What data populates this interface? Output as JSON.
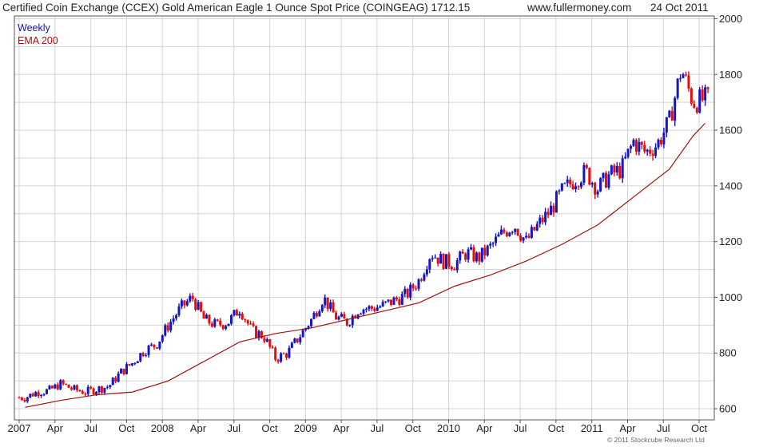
{
  "header": {
    "title": "Certified Coin Exchange (CCEX) Gold American Eagle 1 Ounce Spot Price (COINGEAG) 1712.15",
    "source": "www.fullermoney.com",
    "date": "24 Oct 2011"
  },
  "legend": {
    "weekly_label": "Weekly",
    "ema_label": "EMA 200"
  },
  "copyright": "© 2011 Stockcube Research Ltd",
  "colors": {
    "up": "#1414c8",
    "down": "#e01010",
    "ema": "#a01010",
    "grid": "#d4d4d4",
    "axis": "#555555"
  },
  "chart_data": {
    "type": "candlestick",
    "title": "Certified Coin Exchange (CCEX) Gold American Eagle 1 Ounce Spot Price (COINGEAG) 1712.15",
    "interval": "weekly",
    "y_axis": {
      "min": 560,
      "max": 2010,
      "ticks": [
        600,
        800,
        1000,
        1200,
        1400,
        1600,
        1800,
        2000
      ],
      "position": "right"
    },
    "x_axis": {
      "labels": [
        "2007",
        "Apr",
        "Jul",
        "Oct",
        "2008",
        "Apr",
        "Jul",
        "Oct",
        "2009",
        "Apr",
        "Jul",
        "Oct",
        "2010",
        "Apr",
        "Jul",
        "Oct",
        "2011",
        "Apr",
        "Jul",
        "Oct"
      ],
      "start": "2007-01",
      "end": "2011-10"
    },
    "series": [
      {
        "name": "Weekly",
        "kind": "close",
        "points": [
          [
            "2007-01",
            640
          ],
          [
            "2007-02",
            660
          ],
          [
            "2007-03",
            665
          ],
          [
            "2007-04",
            690
          ],
          [
            "2007-05",
            670
          ],
          [
            "2007-06",
            660
          ],
          [
            "2007-07",
            670
          ],
          [
            "2007-08",
            680
          ],
          [
            "2007-09",
            730
          ],
          [
            "2007-10",
            765
          ],
          [
            "2007-11",
            810
          ],
          [
            "2007-12",
            830
          ],
          [
            "2008-01",
            900
          ],
          [
            "2008-02",
            960
          ],
          [
            "2008-03",
            1000
          ],
          [
            "2008-04",
            920
          ],
          [
            "2008-05",
            900
          ],
          [
            "2008-06",
            910
          ],
          [
            "2008-07",
            960
          ],
          [
            "2008-08",
            880
          ],
          [
            "2008-09",
            860
          ],
          [
            "2008-10",
            780
          ],
          [
            "2008-11",
            800
          ],
          [
            "2008-12",
            860
          ],
          [
            "2009-01",
            920
          ],
          [
            "2009-02",
            1000
          ],
          [
            "2009-03",
            930
          ],
          [
            "2009-04",
            910
          ],
          [
            "2009-05",
            960
          ],
          [
            "2009-06",
            960
          ],
          [
            "2009-07",
            970
          ],
          [
            "2009-08",
            990
          ],
          [
            "2009-09",
            1010
          ],
          [
            "2009-10",
            1060
          ],
          [
            "2009-11",
            1160
          ],
          [
            "2009-12",
            1130
          ],
          [
            "2010-01",
            1120
          ],
          [
            "2010-02",
            1160
          ],
          [
            "2010-03",
            1140
          ],
          [
            "2010-04",
            1180
          ],
          [
            "2010-05",
            1230
          ],
          [
            "2010-06",
            1260
          ],
          [
            "2010-07",
            1200
          ],
          [
            "2010-08",
            1260
          ],
          [
            "2010-09",
            1310
          ],
          [
            "2010-10",
            1380
          ],
          [
            "2010-11",
            1420
          ],
          [
            "2010-12",
            1450
          ],
          [
            "2011-01",
            1390
          ],
          [
            "2011-02",
            1440
          ],
          [
            "2011-03",
            1460
          ],
          [
            "2011-04",
            1560
          ],
          [
            "2011-05",
            1520
          ],
          [
            "2011-06",
            1550
          ],
          [
            "2011-07",
            1630
          ],
          [
            "2011-08",
            1820
          ],
          [
            "2011-09",
            1700
          ],
          [
            "2011-10",
            1712
          ]
        ]
      },
      {
        "name": "EMA 200",
        "kind": "line",
        "points": [
          [
            "2007-01",
            605
          ],
          [
            "2007-04",
            630
          ],
          [
            "2007-07",
            650
          ],
          [
            "2007-10",
            660
          ],
          [
            "2008-01",
            700
          ],
          [
            "2008-04",
            770
          ],
          [
            "2008-07",
            840
          ],
          [
            "2008-10",
            870
          ],
          [
            "2009-01",
            890
          ],
          [
            "2009-04",
            920
          ],
          [
            "2009-07",
            950
          ],
          [
            "2009-10",
            980
          ],
          [
            "2010-01",
            1040
          ],
          [
            "2010-04",
            1080
          ],
          [
            "2010-07",
            1130
          ],
          [
            "2010-10",
            1190
          ],
          [
            "2011-01",
            1260
          ],
          [
            "2011-04",
            1360
          ],
          [
            "2011-07",
            1460
          ],
          [
            "2011-09",
            1580
          ],
          [
            "2011-10",
            1625
          ]
        ]
      }
    ]
  }
}
